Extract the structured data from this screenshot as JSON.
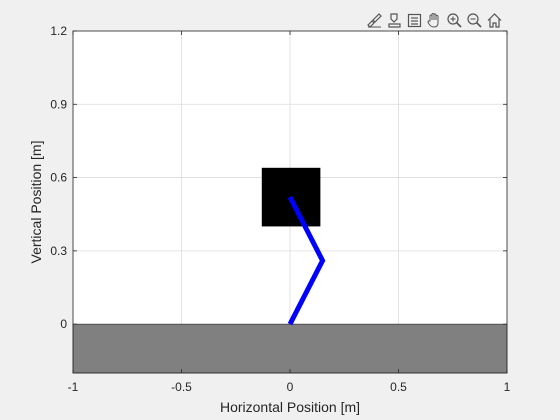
{
  "toolbar": {
    "icons": [
      "brush-icon",
      "datatip-icon",
      "legend-icon",
      "pan-hand-icon",
      "zoom-in-icon",
      "zoom-out-icon",
      "home-icon"
    ]
  },
  "colors": {
    "window_background": "#f0f0f0",
    "axes_background": "#ffffff",
    "grid": "#dcdcdc",
    "axis_line": "#262626",
    "ground": "#808080",
    "body_block": "#000000",
    "leg": "#0000ff"
  },
  "chart_data": {
    "type": "line",
    "title": "",
    "xlabel": "Horizontal Position [m]",
    "ylabel": "Vertical Position [m]",
    "xlim": [
      -1,
      1
    ],
    "ylim": [
      -0.2,
      1.2
    ],
    "grid": true,
    "x_ticks": [
      -1,
      -0.5,
      0,
      0.5,
      1
    ],
    "x_tick_labels": [
      "-1",
      "-0.5",
      "0",
      "0.5",
      "1"
    ],
    "y_ticks": [
      0,
      0.3,
      0.6,
      0.9,
      1.2
    ],
    "y_tick_labels": [
      "0",
      "0.3",
      "0.6",
      "0.9",
      "1.2"
    ],
    "ground": {
      "x": [
        -1,
        1
      ],
      "y": [
        -0.2,
        0
      ]
    },
    "body_block": {
      "x": [
        -0.13,
        0.14
      ],
      "y": [
        0.4,
        0.64
      ]
    },
    "leg_line": {
      "x": [
        0,
        0.15,
        0
      ],
      "y": [
        0,
        0.26,
        0.52
      ]
    }
  }
}
